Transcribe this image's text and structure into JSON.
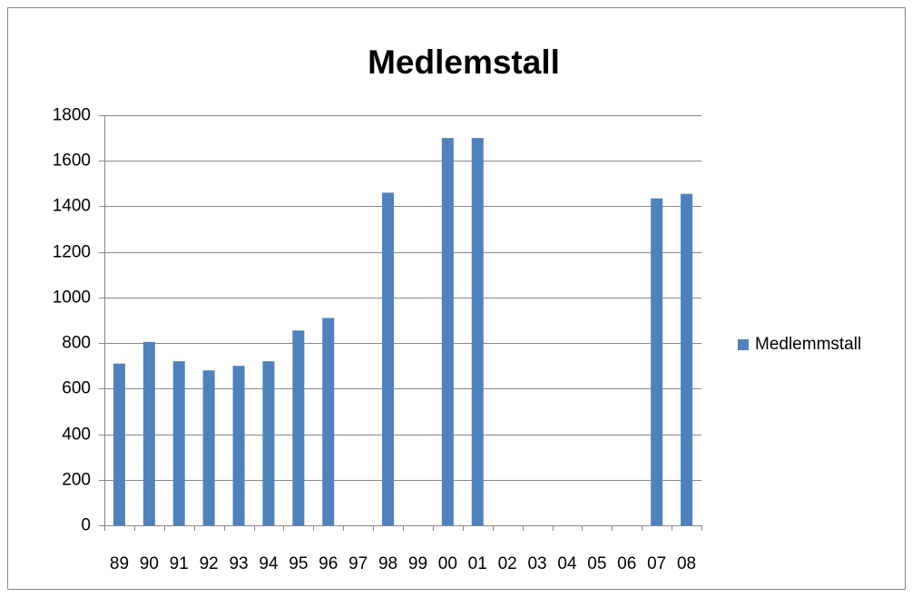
{
  "chart_data": {
    "type": "bar",
    "title": "Medlemstall",
    "categories": [
      "89",
      "90",
      "91",
      "92",
      "93",
      "94",
      "95",
      "96",
      "97",
      "98",
      "99",
      "00",
      "01",
      "02",
      "03",
      "04",
      "05",
      "06",
      "07",
      "08"
    ],
    "series": [
      {
        "name": "Medlemmstall",
        "color": "#4f81bd",
        "values": [
          710,
          805,
          720,
          680,
          700,
          720,
          855,
          910,
          null,
          1460,
          null,
          1700,
          1700,
          null,
          null,
          null,
          null,
          null,
          1435,
          1455
        ]
      }
    ],
    "ylim": [
      0,
      1800
    ],
    "yticks": [
      0,
      200,
      400,
      600,
      800,
      1000,
      1200,
      1400,
      1600,
      1800
    ],
    "grid": true,
    "legend": "right"
  }
}
